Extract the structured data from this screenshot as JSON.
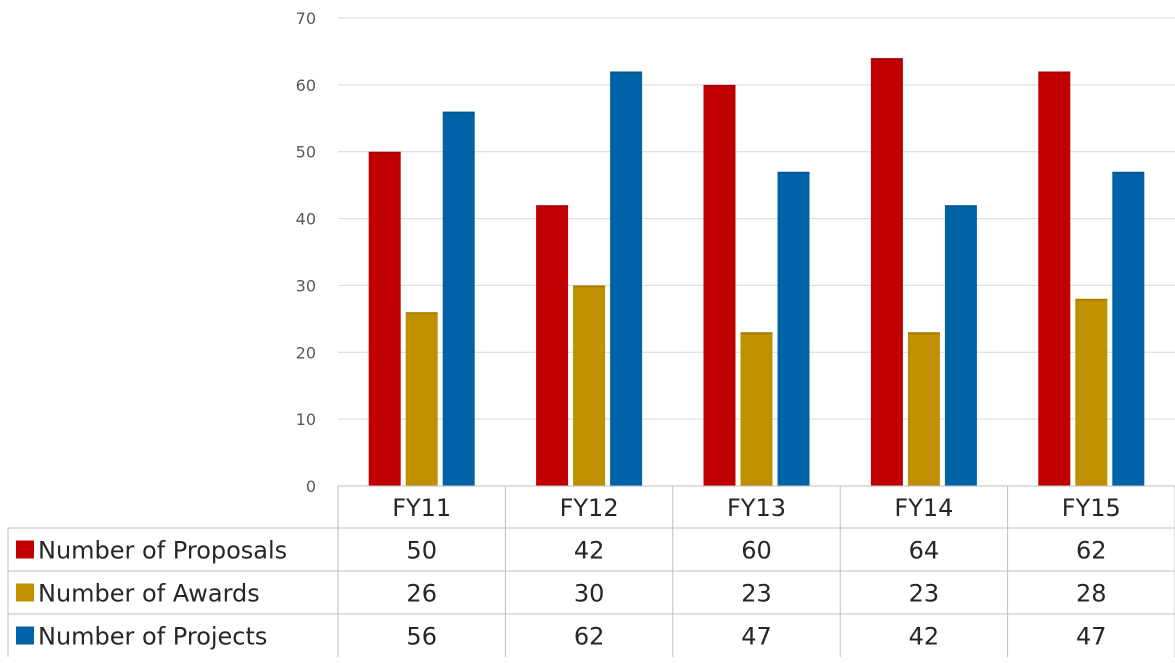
{
  "chart_data": {
    "type": "bar",
    "categories": [
      "FY11",
      "FY12",
      "FY13",
      "FY14",
      "FY15"
    ],
    "series": [
      {
        "name": "Number of Proposals",
        "color": "#c00000",
        "values": [
          50,
          42,
          60,
          64,
          62
        ]
      },
      {
        "name": "Number of Awards",
        "color": "#bf9000",
        "values": [
          26,
          30,
          23,
          23,
          28
        ]
      },
      {
        "name": "Number of Projects",
        "color": "#0063a8",
        "values": [
          56,
          62,
          47,
          42,
          47
        ]
      }
    ],
    "ylim": [
      0,
      70
    ],
    "yticks": [
      0,
      10,
      20,
      30,
      40,
      50,
      60,
      70
    ],
    "grid": true,
    "legend": "data-table-rows",
    "data_table": true
  }
}
